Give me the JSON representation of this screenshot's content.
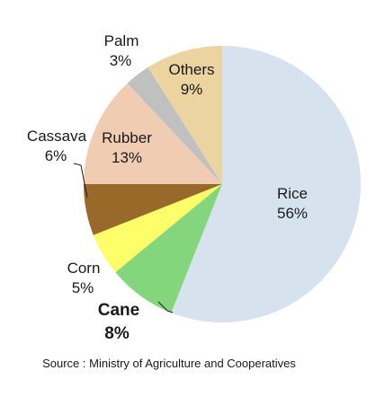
{
  "chart_data": {
    "type": "pie",
    "slices": [
      {
        "label": "Rice",
        "value": 56,
        "value_text": "56%",
        "color": "#d6e3ee"
      },
      {
        "label": "Cane",
        "value": 8,
        "value_text": "8%",
        "color": "#83d67c"
      },
      {
        "label": "Corn",
        "value": 5,
        "value_text": "5%",
        "color": "#fefe6a"
      },
      {
        "label": "Cassava",
        "value": 6,
        "value_text": "6%",
        "color": "#996929"
      },
      {
        "label": "Rubber",
        "value": 13,
        "value_text": "13%",
        "color": "#f0ccb3"
      },
      {
        "label": "Palm",
        "value": 3,
        "value_text": "3%",
        "color": "#c0c0c0"
      },
      {
        "label": "Others",
        "value": 9,
        "value_text": "9%",
        "color": "#ebd49f"
      }
    ],
    "source": "Source : Ministry of Agriculture and Cooperatives"
  }
}
